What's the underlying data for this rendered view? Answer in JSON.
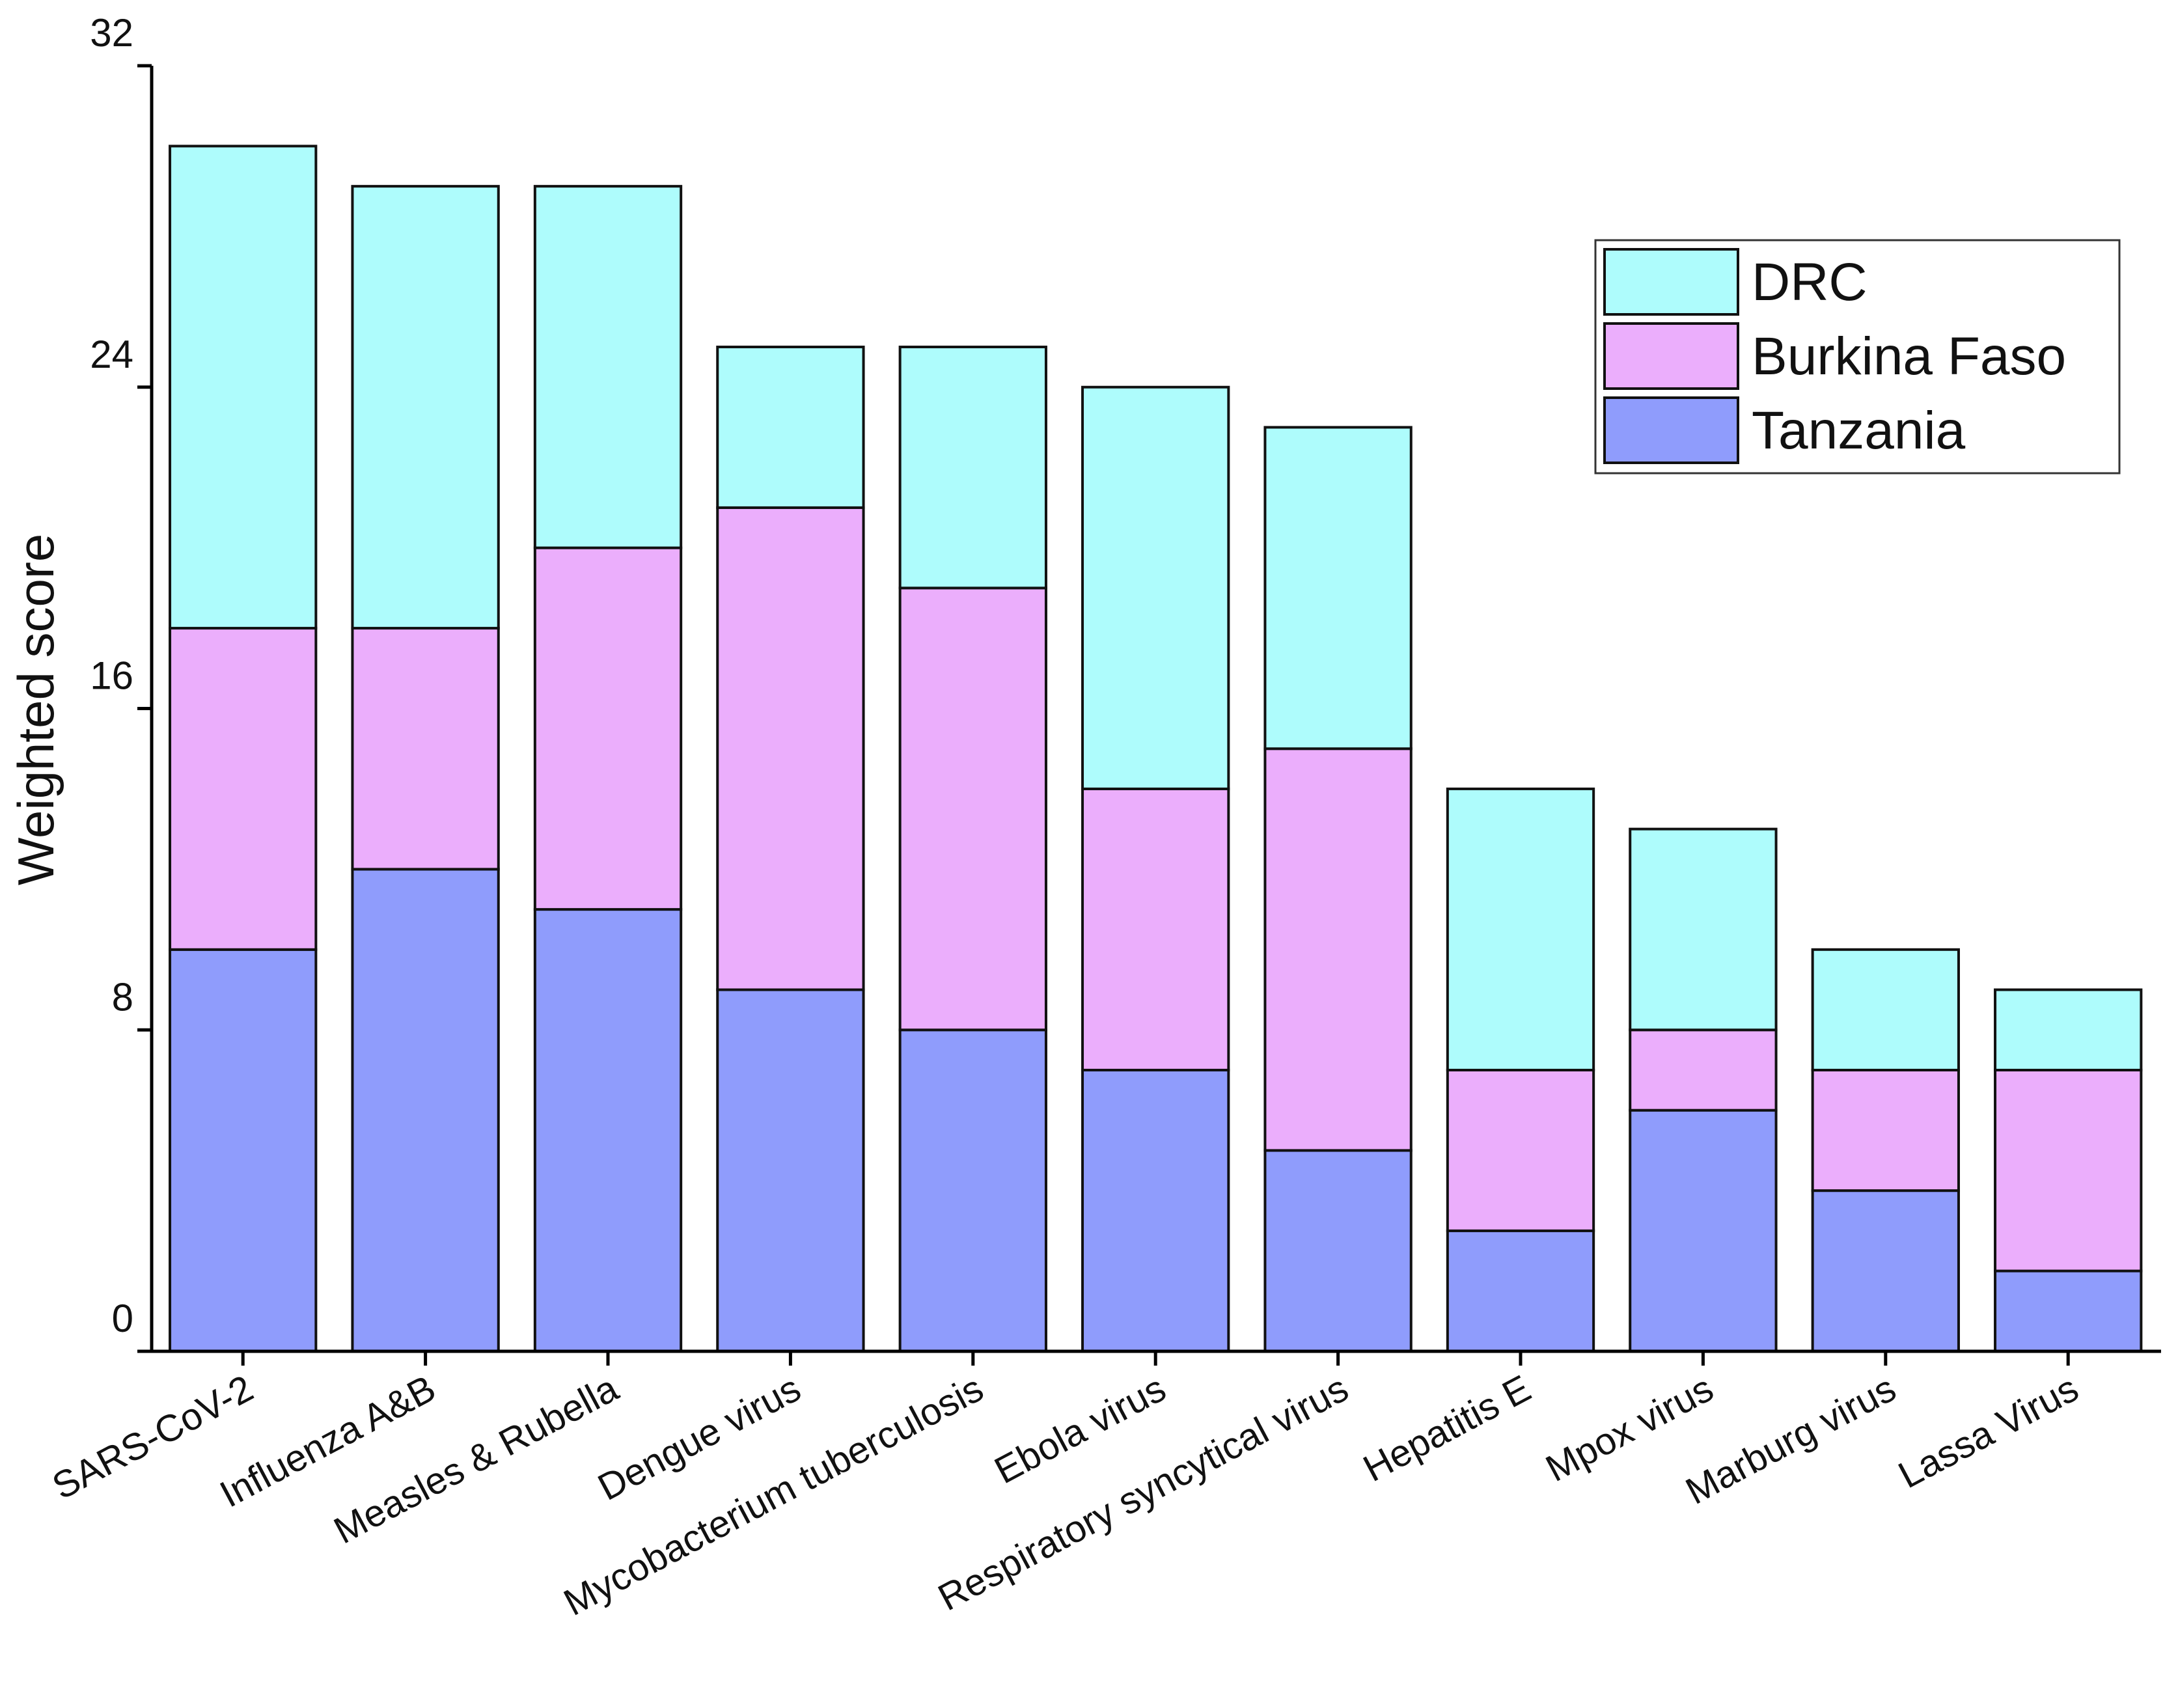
{
  "chart_data": {
    "type": "stacked_bar",
    "y_label": "Weighted score",
    "categories": [
      "SARS-CoV-2",
      "Influenza A&B",
      "Measles & Rubella",
      "Dengue virus",
      "Mycobacterium tuberculosis",
      "Ebola virus",
      "Respiratory syncytical virus",
      "Hepatitis E",
      "Mpox virus",
      "Marburg virus",
      "Lassa Virus"
    ],
    "series": [
      {
        "name": "Tanzania",
        "color": "#8f9cfc",
        "values": [
          10,
          12,
          11,
          9,
          8,
          7,
          5,
          3,
          6,
          4,
          2
        ]
      },
      {
        "name": "Burkina Faso",
        "color": "#ebaefc",
        "values": [
          8,
          6,
          9,
          12,
          11,
          7,
          10,
          4,
          2,
          3,
          5
        ]
      },
      {
        "name": "DRC",
        "color": "#aefcfc",
        "values": [
          12,
          11,
          9,
          4,
          6,
          10,
          8,
          7,
          5,
          3,
          2
        ]
      }
    ],
    "ylim": [
      0,
      32
    ],
    "yticks": [
      0,
      8,
      16,
      24,
      32
    ],
    "legend": "top-right"
  }
}
